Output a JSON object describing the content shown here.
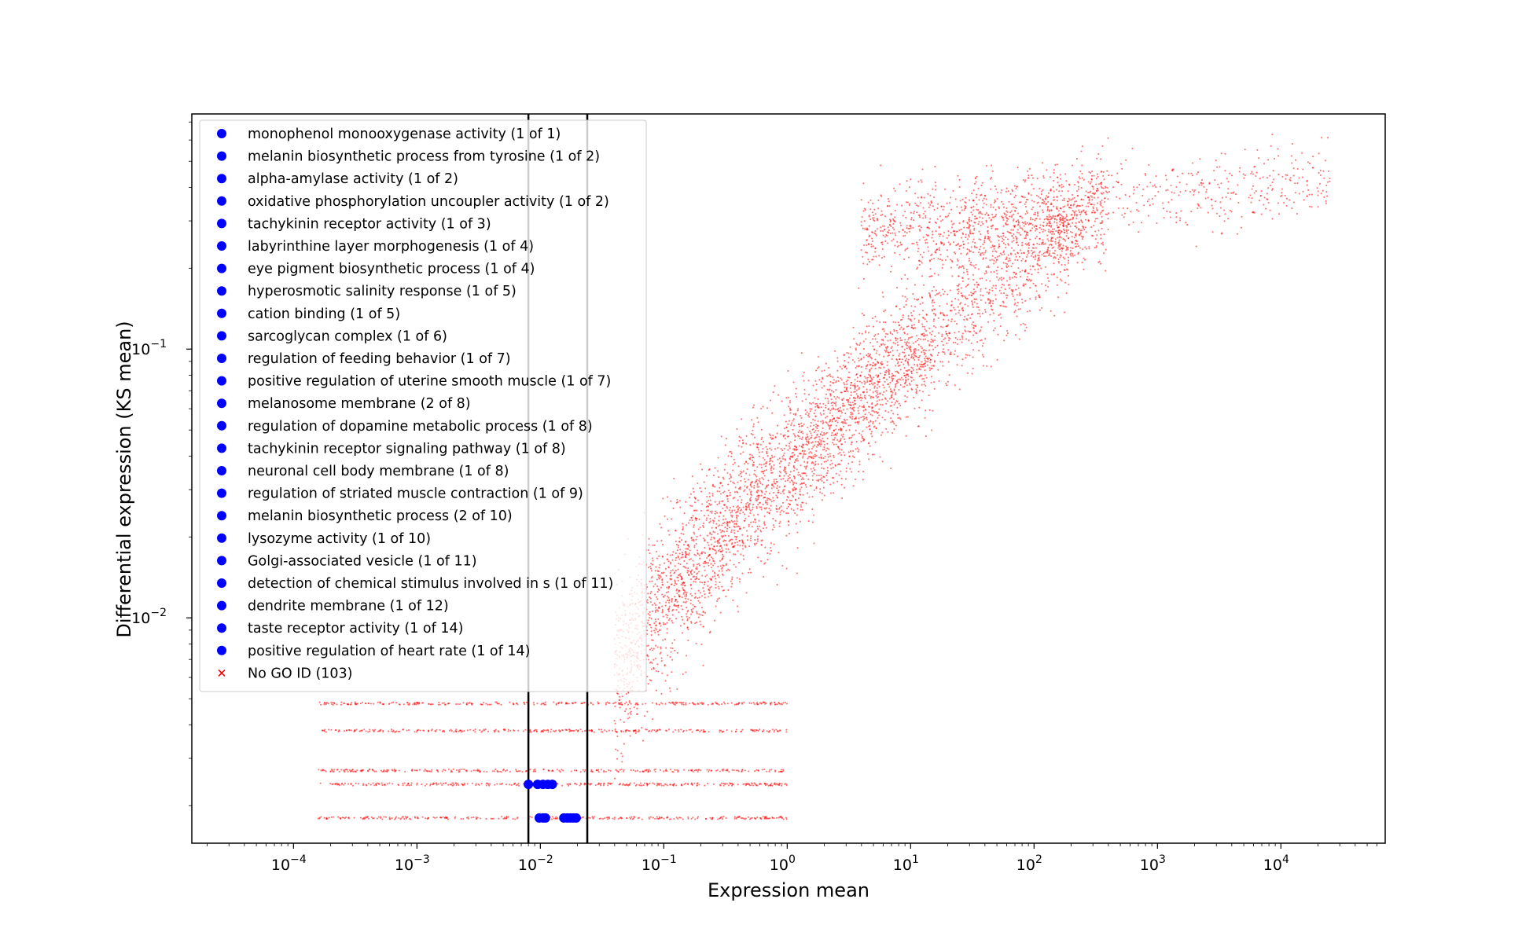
{
  "chart_data": {
    "type": "scatter",
    "title": "",
    "xlabel": "Expression mean",
    "ylabel": "Differential expression (KS mean)",
    "x_scale": "log",
    "y_scale": "log",
    "xlim": [
      1.5e-05,
      70000
    ],
    "ylim": [
      0.00145,
      0.75
    ],
    "x_ticks": [
      {
        "value": 0.0001,
        "base": "10",
        "exp": "−4"
      },
      {
        "value": 0.001,
        "base": "10",
        "exp": "−3"
      },
      {
        "value": 0.01,
        "base": "10",
        "exp": "−2"
      },
      {
        "value": 0.1,
        "base": "10",
        "exp": "−1"
      },
      {
        "value": 1,
        "base": "10",
        "exp": "0"
      },
      {
        "value": 10,
        "base": "10",
        "exp": "1"
      },
      {
        "value": 100,
        "base": "10",
        "exp": "2"
      },
      {
        "value": 1000,
        "base": "10",
        "exp": "3"
      },
      {
        "value": 10000,
        "base": "10",
        "exp": "4"
      }
    ],
    "y_ticks": [
      {
        "value": 0.01,
        "base": "10",
        "exp": "−2"
      },
      {
        "value": 0.1,
        "base": "10",
        "exp": "−1"
      }
    ],
    "vertical_lines": [
      0.008,
      0.024
    ],
    "background_series": {
      "name": "No GO ID (103)",
      "color": "#ff0000",
      "marker": "x",
      "point_count_drawn": 7000,
      "description_levels": [
        0.0018,
        0.0024,
        0.0027,
        0.0038,
        0.0048
      ]
    },
    "highlight_points": [
      {
        "x": 0.008,
        "y": 0.0024
      },
      {
        "x": 0.0095,
        "y": 0.0024
      },
      {
        "x": 0.0105,
        "y": 0.0024
      },
      {
        "x": 0.0115,
        "y": 0.0024
      },
      {
        "x": 0.0125,
        "y": 0.0024
      },
      {
        "x": 0.0098,
        "y": 0.0018
      },
      {
        "x": 0.0105,
        "y": 0.0018
      },
      {
        "x": 0.011,
        "y": 0.0018
      },
      {
        "x": 0.0155,
        "y": 0.0018
      },
      {
        "x": 0.0165,
        "y": 0.0018
      },
      {
        "x": 0.0175,
        "y": 0.0018
      },
      {
        "x": 0.0185,
        "y": 0.0018
      },
      {
        "x": 0.0195,
        "y": 0.0018
      }
    ],
    "legend": {
      "placement": "upper left",
      "entries": [
        {
          "label": "monophenol monooxygenase activity (1 of 1)",
          "marker": "dot",
          "color": "#0000ff"
        },
        {
          "label": "melanin biosynthetic process from tyrosine (1 of 2)",
          "marker": "dot",
          "color": "#0000ff"
        },
        {
          "label": "alpha-amylase activity (1 of 2)",
          "marker": "dot",
          "color": "#0000ff"
        },
        {
          "label": "oxidative phosphorylation uncoupler activity (1 of 2)",
          "marker": "dot",
          "color": "#0000ff"
        },
        {
          "label": "tachykinin receptor activity (1 of 3)",
          "marker": "dot",
          "color": "#0000ff"
        },
        {
          "label": "labyrinthine layer morphogenesis (1 of 4)",
          "marker": "dot",
          "color": "#0000ff"
        },
        {
          "label": "eye pigment biosynthetic process (1 of 4)",
          "marker": "dot",
          "color": "#0000ff"
        },
        {
          "label": "hyperosmotic salinity response (1 of 5)",
          "marker": "dot",
          "color": "#0000ff"
        },
        {
          "label": "cation binding (1 of 5)",
          "marker": "dot",
          "color": "#0000ff"
        },
        {
          "label": "sarcoglycan complex (1 of 6)",
          "marker": "dot",
          "color": "#0000ff"
        },
        {
          "label": "regulation of feeding behavior (1 of 7)",
          "marker": "dot",
          "color": "#0000ff"
        },
        {
          "label": "positive regulation of uterine smooth muscle (1 of 7)",
          "marker": "dot",
          "color": "#0000ff"
        },
        {
          "label": "melanosome membrane (2 of 8)",
          "marker": "dot",
          "color": "#0000ff"
        },
        {
          "label": "regulation of dopamine metabolic process (1 of 8)",
          "marker": "dot",
          "color": "#0000ff"
        },
        {
          "label": "tachykinin receptor signaling pathway (1 of 8)",
          "marker": "dot",
          "color": "#0000ff"
        },
        {
          "label": "neuronal cell body membrane (1 of 8)",
          "marker": "dot",
          "color": "#0000ff"
        },
        {
          "label": "regulation of striated muscle contraction (1 of 9)",
          "marker": "dot",
          "color": "#0000ff"
        },
        {
          "label": "melanin biosynthetic process (2 of 10)",
          "marker": "dot",
          "color": "#0000ff"
        },
        {
          "label": "lysozyme activity (1 of 10)",
          "marker": "dot",
          "color": "#0000ff"
        },
        {
          "label": "Golgi-associated vesicle (1 of 11)",
          "marker": "dot",
          "color": "#0000ff"
        },
        {
          "label": "detection of chemical stimulus involved in s (1 of 11)",
          "marker": "dot",
          "color": "#0000ff"
        },
        {
          "label": "dendrite membrane (1 of 12)",
          "marker": "dot",
          "color": "#0000ff"
        },
        {
          "label": "taste receptor activity (1 of 14)",
          "marker": "dot",
          "color": "#0000ff"
        },
        {
          "label": "positive regulation of heart rate (1 of 14)",
          "marker": "dot",
          "color": "#0000ff"
        },
        {
          "label": "No GO ID (103)",
          "marker": "x",
          "color": "#ff0000"
        }
      ]
    },
    "grid": false
  }
}
